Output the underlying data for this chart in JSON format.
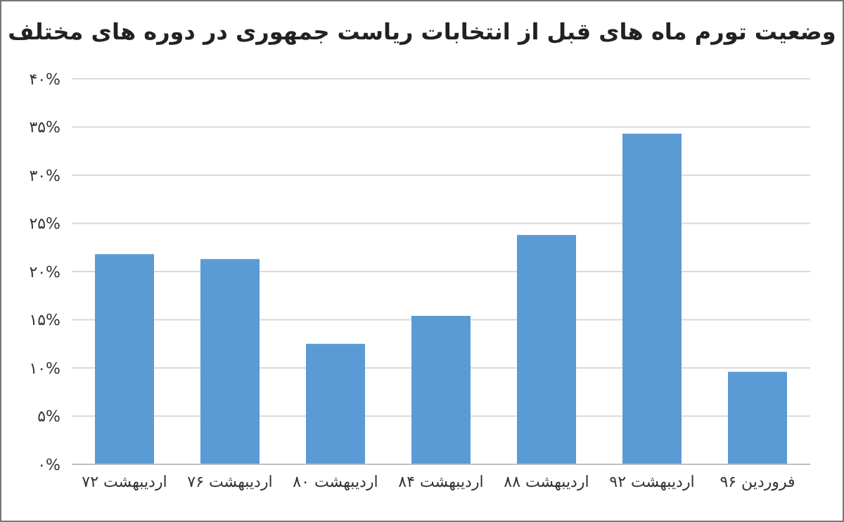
{
  "chart_data": {
    "type": "bar",
    "title": "وضعیت تورم ماه های قبل از انتخابات ریاست جمهوری در دوره های مختلف",
    "categories": [
      "اردیبهشت ۷۲",
      "اردیبهشت ۷۶",
      "اردیبهشت ۸۰",
      "اردیبهشت ۸۴",
      "اردیبهشت ۸۸",
      "اردیبهشت ۹۲",
      "فروردین ۹۶"
    ],
    "values": [
      21.8,
      21.3,
      12.5,
      15.4,
      23.8,
      34.3,
      9.6
    ],
    "color": "#5b9bd5",
    "ylim": [
      0,
      40
    ],
    "yticks": [
      {
        "value": 0,
        "label": "۰%"
      },
      {
        "value": 5,
        "label": "۵%"
      },
      {
        "value": 10,
        "label": "۱۰%"
      },
      {
        "value": 15,
        "label": "۱۵%"
      },
      {
        "value": 20,
        "label": "۲۰%"
      },
      {
        "value": 25,
        "label": "۲۵%"
      },
      {
        "value": 30,
        "label": "۳۰%"
      },
      {
        "value": 35,
        "label": "۳۵%"
      },
      {
        "value": 40,
        "label": "۴۰%"
      }
    ],
    "grid": "y"
  }
}
